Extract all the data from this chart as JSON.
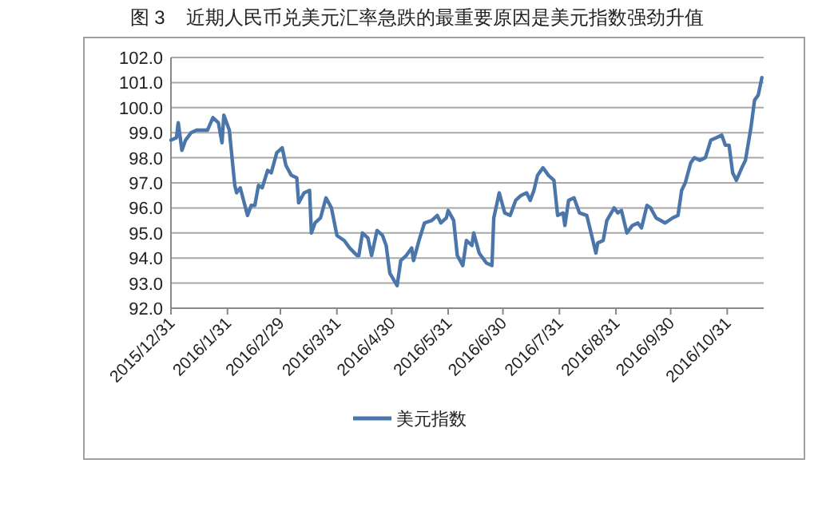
{
  "chart_data": {
    "type": "line",
    "title": "图 3    近期人民币兑美元汇率急跌的最重要原因是美元指数强劲升值",
    "x": [
      "2015-12-31",
      "2016-01-03",
      "2016-01-04",
      "2016-01-06",
      "2016-01-08",
      "2016-01-11",
      "2016-01-14",
      "2016-01-18",
      "2016-01-20",
      "2016-01-23",
      "2016-01-26",
      "2016-01-28",
      "2016-01-29",
      "2016-02-01",
      "2016-02-04",
      "2016-02-05",
      "2016-02-07",
      "2016-02-11",
      "2016-02-13",
      "2016-02-15",
      "2016-02-17",
      "2016-02-19",
      "2016-02-22",
      "2016-02-24",
      "2016-02-27",
      "2016-03-01",
      "2016-03-03",
      "2016-03-06",
      "2016-03-09",
      "2016-03-10",
      "2016-03-13",
      "2016-03-16",
      "2016-03-17",
      "2016-03-19",
      "2016-03-22",
      "2016-03-25",
      "2016-03-28",
      "2016-03-31",
      "2016-04-04",
      "2016-04-07",
      "2016-04-11",
      "2016-04-12",
      "2016-04-14",
      "2016-04-17",
      "2016-04-19",
      "2016-04-22",
      "2016-04-25",
      "2016-04-27",
      "2016-04-29",
      "2016-05-03",
      "2016-05-05",
      "2016-05-08",
      "2016-05-11",
      "2016-05-12",
      "2016-05-15",
      "2016-05-18",
      "2016-05-22",
      "2016-05-25",
      "2016-05-27",
      "2016-05-30",
      "2016-05-31",
      "2016-06-03",
      "2016-06-05",
      "2016-06-08",
      "2016-06-10",
      "2016-06-13",
      "2016-06-14",
      "2016-06-17",
      "2016-06-21",
      "2016-06-24",
      "2016-06-25",
      "2016-06-28",
      "2016-07-01",
      "2016-07-04",
      "2016-07-07",
      "2016-07-10",
      "2016-07-13",
      "2016-07-15",
      "2016-07-17",
      "2016-07-19",
      "2016-07-22",
      "2016-07-25",
      "2016-07-28",
      "2016-07-30",
      "2016-08-02",
      "2016-08-03",
      "2016-08-05",
      "2016-08-08",
      "2016-08-11",
      "2016-08-15",
      "2016-08-18",
      "2016-08-20",
      "2016-08-21",
      "2016-08-24",
      "2016-08-26",
      "2016-08-30",
      "2016-09-01",
      "2016-09-03",
      "2016-09-06",
      "2016-09-09",
      "2016-09-12",
      "2016-09-14",
      "2016-09-17",
      "2016-09-19",
      "2016-09-22",
      "2016-09-27",
      "2016-10-01",
      "2016-10-04",
      "2016-10-06",
      "2016-10-08",
      "2016-10-11",
      "2016-10-13",
      "2016-10-16",
      "2016-10-19",
      "2016-10-22",
      "2016-10-25",
      "2016-10-28",
      "2016-10-30",
      "2016-11-01",
      "2016-11-03",
      "2016-11-05",
      "2016-11-08",
      "2016-11-10",
      "2016-11-13",
      "2016-11-15",
      "2016-11-17",
      "2016-11-19"
    ],
    "series": [
      {
        "name": "美元指数",
        "color": "#4a76aa",
        "values": [
          98.7,
          98.8,
          99.4,
          98.3,
          98.7,
          99.0,
          99.1,
          99.1,
          99.1,
          99.6,
          99.4,
          98.6,
          99.7,
          99.1,
          96.9,
          96.6,
          96.8,
          95.7,
          96.1,
          96.1,
          96.9,
          96.8,
          97.5,
          97.4,
          98.2,
          98.4,
          97.7,
          97.3,
          97.2,
          96.2,
          96.6,
          96.7,
          95.0,
          95.4,
          95.6,
          96.4,
          96.0,
          94.9,
          94.7,
          94.4,
          94.1,
          94.1,
          95.0,
          94.8,
          94.1,
          95.1,
          94.9,
          94.5,
          93.4,
          92.9,
          93.9,
          94.1,
          94.4,
          93.9,
          94.7,
          95.4,
          95.5,
          95.7,
          95.4,
          95.6,
          95.9,
          95.5,
          94.1,
          93.7,
          94.7,
          94.5,
          95.0,
          94.2,
          93.8,
          93.7,
          95.6,
          96.6,
          95.8,
          95.7,
          96.3,
          96.5,
          96.6,
          96.3,
          96.7,
          97.3,
          97.6,
          97.3,
          97.1,
          95.7,
          95.8,
          95.3,
          96.3,
          96.4,
          95.8,
          95.7,
          94.8,
          94.2,
          94.6,
          94.7,
          95.5,
          96.0,
          95.8,
          95.9,
          95.0,
          95.3,
          95.4,
          95.2,
          96.1,
          96.0,
          95.6,
          95.4,
          95.6,
          95.7,
          96.7,
          97.0,
          97.8,
          98.0,
          97.9,
          98.0,
          98.7,
          98.8,
          98.9,
          98.5,
          98.5,
          97.4,
          97.1,
          97.6,
          97.9,
          99.2,
          100.3,
          100.5,
          101.2
        ]
      }
    ],
    "xlim": [
      "2015-12-31",
      "2016-11-20"
    ],
    "xticks": [
      {
        "value": "2015-12-31",
        "label": "2015/12/31"
      },
      {
        "value": "2016-01-31",
        "label": "2016/1/31"
      },
      {
        "value": "2016-02-29",
        "label": "2016/2/29"
      },
      {
        "value": "2016-03-31",
        "label": "2016/3/31"
      },
      {
        "value": "2016-04-30",
        "label": "2016/4/30"
      },
      {
        "value": "2016-05-31",
        "label": "2016/5/31"
      },
      {
        "value": "2016-06-30",
        "label": "2016/6/30"
      },
      {
        "value": "2016-07-31",
        "label": "2016/7/31"
      },
      {
        "value": "2016-08-31",
        "label": "2016/8/31"
      },
      {
        "value": "2016-09-30",
        "label": "2016/9/30"
      },
      {
        "value": "2016-10-31",
        "label": "2016/10/31"
      }
    ],
    "ylim": [
      92,
      102
    ],
    "yticks": [
      {
        "value": 92,
        "label": "92.0"
      },
      {
        "value": 93,
        "label": "93.0"
      },
      {
        "value": 94,
        "label": "94.0"
      },
      {
        "value": 95,
        "label": "95.0"
      },
      {
        "value": 96,
        "label": "96.0"
      },
      {
        "value": 97,
        "label": "97.0"
      },
      {
        "value": 98,
        "label": "98.0"
      },
      {
        "value": 99,
        "label": "99.0"
      },
      {
        "value": 100,
        "label": "100.0"
      },
      {
        "value": 101,
        "label": "101.0"
      },
      {
        "value": 102,
        "label": "102.0"
      }
    ],
    "grid": "y",
    "legend": "bottom",
    "marker": "none",
    "line_style": "solid"
  }
}
